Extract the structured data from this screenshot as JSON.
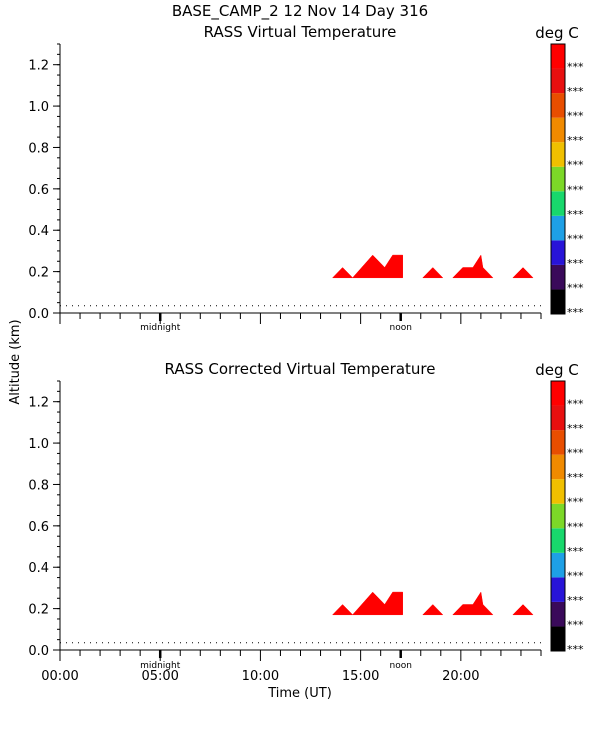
{
  "header": {
    "title": "BASE_CAMP_2   12 Nov 14 Day 316"
  },
  "y_axis_label": "Altitude (km)",
  "x_axis_label": "Time (UT)",
  "x_tick_labels": [
    "00:00",
    "05:00",
    "10:00",
    "15:00",
    "20:00"
  ],
  "marker_labels": {
    "midnight": "midnight",
    "noon": "noon"
  },
  "colorbar": {
    "unit": "deg C",
    "colors": [
      "#000000",
      "#3a0a5a",
      "#2814d8",
      "#1ea0e6",
      "#18d86c",
      "#7cd828",
      "#f0c000",
      "#f08a00",
      "#e84e00",
      "#e81010",
      "#ff0000"
    ],
    "labels": [
      "***",
      "***",
      "***",
      "***",
      "***",
      "***",
      "***",
      "***",
      "***",
      "***",
      "***"
    ]
  },
  "chart_data": [
    {
      "type": "area",
      "title": "RASS Virtual Temperature",
      "xlabel": "Time (UT)",
      "ylabel": "Altitude (km)",
      "xlim": [
        0,
        24
      ],
      "ylim": [
        0,
        1.3
      ],
      "y_ticks": [
        0.0,
        0.2,
        0.4,
        0.6,
        0.8,
        1.0,
        1.2
      ],
      "y_tick_labels": [
        "0.0",
        "0.2",
        "0.4",
        "0.6",
        "0.8",
        "1.0",
        "1.2"
      ],
      "dotted_line_altitude": 0.035,
      "fill_color": "#ff0000",
      "regions": [
        {
          "points": [
            [
              13.6,
              0.17
            ],
            [
              14.1,
              0.22
            ],
            [
              14.6,
              0.17
            ]
          ]
        },
        {
          "points": [
            [
              14.6,
              0.17
            ],
            [
              15.6,
              0.28
            ],
            [
              16.2,
              0.22
            ],
            [
              16.6,
              0.28
            ],
            [
              17.1,
              0.28
            ],
            [
              17.1,
              0.17
            ]
          ]
        },
        {
          "points": [
            [
              18.1,
              0.17
            ],
            [
              18.6,
              0.22
            ],
            [
              19.1,
              0.17
            ]
          ]
        },
        {
          "points": [
            [
              19.6,
              0.17
            ],
            [
              20.1,
              0.22
            ],
            [
              20.6,
              0.22
            ],
            [
              21.0,
              0.28
            ],
            [
              21.1,
              0.22
            ],
            [
              21.6,
              0.17
            ]
          ]
        },
        {
          "points": [
            [
              22.6,
              0.17
            ],
            [
              23.1,
              0.22
            ],
            [
              23.6,
              0.17
            ]
          ]
        }
      ]
    },
    {
      "type": "area",
      "title": "RASS Corrected Virtual Temperature",
      "xlabel": "Time (UT)",
      "ylabel": "Altitude (km)",
      "xlim": [
        0,
        24
      ],
      "ylim": [
        0,
        1.3
      ],
      "y_ticks": [
        0.0,
        0.2,
        0.4,
        0.6,
        0.8,
        1.0,
        1.2
      ],
      "y_tick_labels": [
        "0.0",
        "0.2",
        "0.4",
        "0.6",
        "0.8",
        "1.0",
        "1.2"
      ],
      "dotted_line_altitude": 0.035,
      "fill_color": "#ff0000",
      "regions": [
        {
          "points": [
            [
              13.6,
              0.17
            ],
            [
              14.1,
              0.22
            ],
            [
              14.6,
              0.17
            ]
          ]
        },
        {
          "points": [
            [
              14.6,
              0.17
            ],
            [
              15.6,
              0.28
            ],
            [
              16.2,
              0.22
            ],
            [
              16.6,
              0.28
            ],
            [
              17.1,
              0.28
            ],
            [
              17.1,
              0.17
            ]
          ]
        },
        {
          "points": [
            [
              18.1,
              0.17
            ],
            [
              18.6,
              0.22
            ],
            [
              19.1,
              0.17
            ]
          ]
        },
        {
          "points": [
            [
              19.6,
              0.17
            ],
            [
              20.1,
              0.22
            ],
            [
              20.6,
              0.22
            ],
            [
              21.0,
              0.28
            ],
            [
              21.1,
              0.22
            ],
            [
              21.6,
              0.17
            ]
          ]
        },
        {
          "points": [
            [
              22.6,
              0.17
            ],
            [
              23.1,
              0.22
            ],
            [
              23.6,
              0.17
            ]
          ]
        }
      ]
    }
  ]
}
